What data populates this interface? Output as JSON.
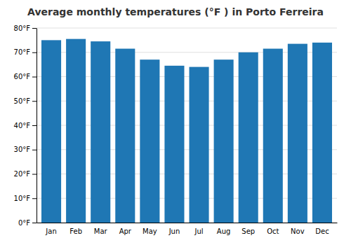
{
  "chart_data": {
    "type": "bar",
    "title": "Average monthly temperatures (°F ) in Porto Ferreira",
    "categories": [
      "Jan",
      "Feb",
      "Mar",
      "Apr",
      "May",
      "Jun",
      "Jul",
      "Aug",
      "Sep",
      "Oct",
      "Nov",
      "Dec"
    ],
    "values": [
      75,
      75.5,
      74.5,
      71.5,
      67,
      64.5,
      64,
      67,
      70,
      71.5,
      73.5,
      74
    ],
    "ylim": [
      0,
      80
    ],
    "yticks": [
      {
        "value": 0,
        "label": "0°F"
      },
      {
        "value": 10,
        "label": "10°F"
      },
      {
        "value": 20,
        "label": "20°F"
      },
      {
        "value": 30,
        "label": "30°F"
      },
      {
        "value": 40,
        "label": "40°F"
      },
      {
        "value": 50,
        "label": "50°F"
      },
      {
        "value": 60,
        "label": "60°F"
      },
      {
        "value": 70,
        "label": "70°F"
      },
      {
        "value": 80,
        "label": "80°F"
      }
    ],
    "grid": true
  }
}
